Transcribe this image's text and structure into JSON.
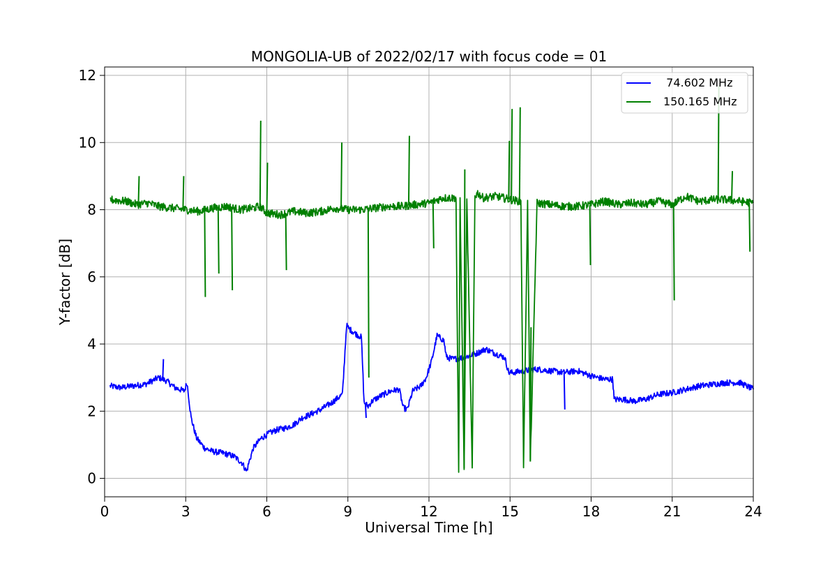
{
  "chart_data": {
    "type": "line",
    "title": "MONGOLIA-UB of 2022/02/17 with focus code = 01",
    "xlabel": "Universal Time [h]",
    "ylabel": "Y-factor [dB]",
    "xlim": [
      0,
      24
    ],
    "ylim": [
      -0.55,
      12.25
    ],
    "grid": true,
    "legend_position": "top-right",
    "x_ticks": [
      0,
      3,
      6,
      9,
      12,
      15,
      18,
      21,
      24
    ],
    "y_ticks": [
      0,
      2,
      4,
      6,
      8,
      10,
      12
    ],
    "series": [
      {
        "name": "  74.602 MHz",
        "color": "#0000ff",
        "x": [
          0.2,
          0.6,
          1.0,
          1.5,
          2.0,
          2.3,
          2.6,
          2.95,
          3.05,
          3.2,
          3.4,
          3.7,
          4.0,
          4.4,
          4.8,
          5.1,
          5.25,
          5.35,
          5.5,
          5.8,
          6.1,
          6.4,
          6.7,
          7.0,
          7.3,
          7.6,
          8.0,
          8.4,
          8.8,
          8.95,
          9.05,
          9.3,
          9.5,
          9.6,
          9.75,
          9.9,
          10.2,
          10.6,
          10.9,
          11.05,
          11.2,
          11.4,
          11.7,
          11.9,
          12.1,
          12.3,
          12.55,
          12.65,
          12.9,
          13.3,
          13.7,
          14.1,
          14.5,
          14.8,
          14.95,
          15.1,
          15.5,
          16.0,
          16.5,
          17.0,
          17.5,
          18.0,
          18.5,
          18.8,
          18.85,
          19.2,
          19.6,
          20.0,
          20.5,
          21.0,
          21.5,
          22.0,
          22.5,
          23.0,
          23.5,
          24.0
        ],
        "values": [
          2.75,
          2.7,
          2.75,
          2.8,
          3.0,
          2.9,
          2.7,
          2.6,
          2.85,
          1.8,
          1.2,
          0.9,
          0.8,
          0.75,
          0.65,
          0.45,
          0.2,
          0.5,
          0.9,
          1.2,
          1.35,
          1.45,
          1.5,
          1.6,
          1.8,
          1.9,
          2.05,
          2.25,
          2.5,
          4.55,
          4.45,
          4.3,
          4.2,
          2.25,
          2.15,
          2.3,
          2.45,
          2.6,
          2.65,
          2.1,
          2.05,
          2.6,
          2.75,
          3.0,
          3.5,
          4.25,
          4.1,
          3.6,
          3.55,
          3.6,
          3.7,
          3.85,
          3.7,
          3.6,
          3.15,
          3.15,
          3.2,
          3.25,
          3.2,
          3.15,
          3.2,
          3.05,
          2.95,
          2.95,
          2.35,
          2.35,
          2.3,
          2.35,
          2.5,
          2.55,
          2.65,
          2.75,
          2.8,
          2.85,
          2.85,
          2.65
        ]
      },
      {
        "name": "150.165 MHz",
        "color": "#008000",
        "x": [
          0.2,
          0.8,
          1.2,
          1.6,
          2.0,
          2.5,
          3.0,
          3.5,
          4.0,
          4.5,
          5.0,
          5.5,
          5.75,
          6.0,
          6.5,
          7.0,
          7.5,
          8.0,
          8.5,
          9.0,
          9.5,
          10.0,
          10.5,
          11.0,
          11.5,
          12.0,
          12.5,
          13.0,
          13.1,
          13.15,
          13.3,
          13.4,
          13.6,
          13.7,
          13.8,
          14.0,
          14.5,
          15.0,
          15.4,
          15.5,
          15.65,
          15.75,
          16.0,
          16.5,
          17.0,
          17.5,
          18.0,
          18.5,
          19.0,
          19.5,
          20.0,
          20.5,
          21.0,
          21.5,
          22.0,
          22.5,
          23.0,
          23.5,
          24.0
        ],
        "values": [
          8.3,
          8.25,
          8.15,
          8.2,
          8.1,
          8.05,
          8.0,
          7.95,
          8.05,
          8.1,
          8.0,
          8.05,
          8.1,
          7.9,
          7.85,
          7.95,
          7.9,
          7.95,
          8.05,
          8.0,
          8.0,
          8.05,
          8.1,
          8.1,
          8.15,
          8.2,
          8.35,
          8.35,
          0.1,
          8.3,
          0.3,
          8.3,
          0.3,
          8.4,
          8.5,
          8.35,
          8.4,
          8.3,
          8.25,
          0.4,
          8.2,
          0.5,
          8.2,
          8.15,
          8.1,
          8.1,
          8.15,
          8.25,
          8.15,
          8.2,
          8.15,
          8.25,
          8.15,
          8.4,
          8.25,
          8.3,
          8.3,
          8.25,
          8.2
        ]
      }
    ],
    "spikes": [
      {
        "series": 1,
        "x": 1.25,
        "y": 9.0
      },
      {
        "series": 1,
        "x": 2.9,
        "y": 9.0
      },
      {
        "series": 1,
        "x": 3.7,
        "y": 5.4
      },
      {
        "series": 1,
        "x": 4.2,
        "y": 6.1
      },
      {
        "series": 1,
        "x": 4.7,
        "y": 5.6
      },
      {
        "series": 1,
        "x": 5.75,
        "y": 10.65
      },
      {
        "series": 1,
        "x": 6.0,
        "y": 9.4
      },
      {
        "series": 1,
        "x": 6.7,
        "y": 6.2
      },
      {
        "series": 1,
        "x": 8.75,
        "y": 10.0
      },
      {
        "series": 1,
        "x": 9.75,
        "y": 3.0
      },
      {
        "series": 1,
        "x": 11.25,
        "y": 10.2
      },
      {
        "series": 1,
        "x": 12.15,
        "y": 6.85
      },
      {
        "series": 1,
        "x": 13.3,
        "y": 9.2
      },
      {
        "series": 1,
        "x": 14.95,
        "y": 10.05
      },
      {
        "series": 1,
        "x": 15.05,
        "y": 11.0
      },
      {
        "series": 1,
        "x": 15.35,
        "y": 11.05
      },
      {
        "series": 1,
        "x": 15.75,
        "y": 4.5
      },
      {
        "series": 1,
        "x": 17.95,
        "y": 6.35
      },
      {
        "series": 1,
        "x": 21.05,
        "y": 5.3
      },
      {
        "series": 1,
        "x": 22.7,
        "y": 11.7
      },
      {
        "series": 1,
        "x": 23.2,
        "y": 9.15
      },
      {
        "series": 1,
        "x": 23.85,
        "y": 6.75
      },
      {
        "series": 0,
        "x": 9.65,
        "y": 1.8
      },
      {
        "series": 0,
        "x": 17.0,
        "y": 2.05
      },
      {
        "series": 0,
        "x": 2.15,
        "y": 3.55
      }
    ]
  }
}
